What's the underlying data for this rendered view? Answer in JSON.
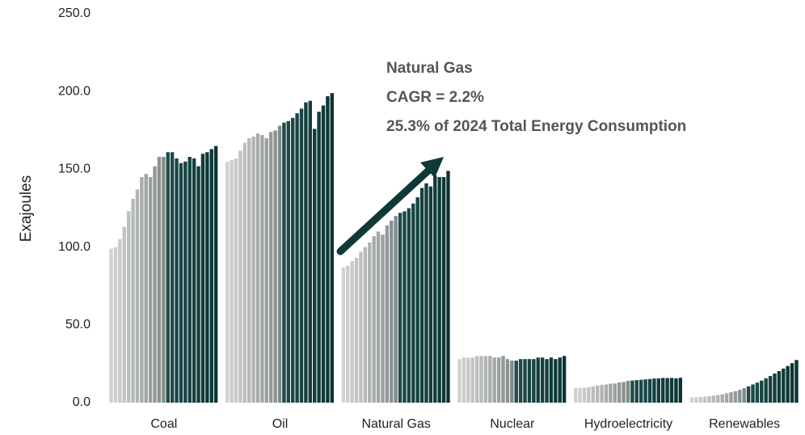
{
  "chart_data": {
    "type": "grouped-bar",
    "ylabel": "Exajoules",
    "categories": [
      "Coal",
      "Oil",
      "Natural Gas",
      "Nuclear",
      "Hydroelectricity",
      "Renewables"
    ],
    "groups": [
      [
        99,
        100,
        105,
        113,
        123,
        131,
        137,
        145,
        147,
        145,
        152,
        158,
        158,
        161,
        161,
        157,
        154,
        155,
        158,
        157,
        152,
        160,
        161,
        163,
        165
      ],
      [
        155,
        156,
        157,
        162,
        167,
        170,
        171,
        173,
        172,
        170,
        174,
        175,
        178,
        180,
        181,
        183,
        186,
        189,
        193,
        194,
        176,
        187,
        191,
        197,
        199
      ],
      [
        87,
        88,
        91,
        93,
        97,
        100,
        103,
        107,
        110,
        108,
        114,
        117,
        120,
        122,
        123,
        125,
        128,
        132,
        138,
        141,
        139,
        146,
        145,
        145,
        149
      ],
      [
        28,
        29,
        29,
        29,
        30,
        30,
        30,
        30,
        29,
        29,
        30,
        28,
        27,
        27,
        28,
        28,
        28,
        28,
        29,
        29,
        28,
        29,
        28,
        29,
        30
      ],
      [
        9.5,
        9.5,
        9.7,
        9.9,
        10.5,
        11,
        11.5,
        11.7,
        12.2,
        12.3,
        13,
        13.3,
        14,
        14.2,
        14.5,
        14.7,
        15,
        15.2,
        15.5,
        15.6,
        15.9,
        15.8,
        15.9,
        15.6,
        16
      ],
      [
        3.4,
        3.5,
        3.7,
        3.9,
        4.2,
        4.5,
        4.9,
        5.4,
        6,
        6.7,
        7.4,
        8.3,
        9.3,
        10.5,
        11.7,
        12.9,
        14.2,
        15.6,
        17.1,
        18.7,
        20.3,
        21.9,
        23.6,
        25.4,
        27.4
      ]
    ],
    "colors": [
      "#d2d2d2",
      "#cdcdcd",
      "#c8c9c9",
      "#c3c4c4",
      "#bdbfbf",
      "#b7b9b9",
      "#b0b3b3",
      "#a9acac",
      "#a2a6a6",
      "#9a9f9f",
      "#939898",
      "#8b9191",
      "#838a8a",
      "#1f4b4b",
      "#1d4949",
      "#1b4747",
      "#194545",
      "#174343",
      "#154141",
      "#143f3f",
      "#123d3d",
      "#113b3b",
      "#0f3939",
      "#0e3737",
      "#0c3535"
    ],
    "ylim": [
      0,
      250
    ],
    "yticks": [
      {
        "value": 0,
        "label": "0.0"
      },
      {
        "value": 50,
        "label": "50.0"
      },
      {
        "value": 100,
        "label": "100.0"
      },
      {
        "value": 150,
        "label": "150.0"
      },
      {
        "value": 200,
        "label": "200.0"
      },
      {
        "value": 250,
        "label": "250.0"
      }
    ],
    "annotation": [
      "Natural Gas",
      "CAGR = 2.2%",
      "25.3% of 2024 Total Energy Consumption"
    ]
  }
}
